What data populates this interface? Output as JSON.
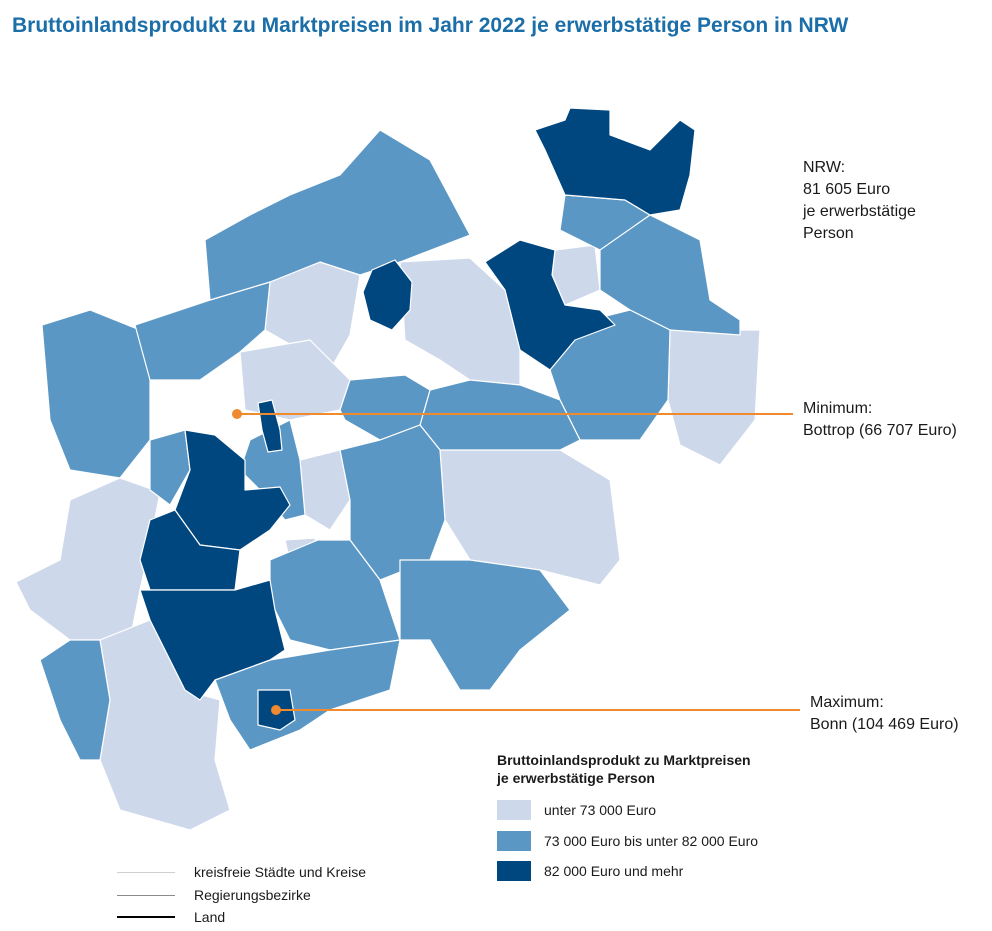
{
  "title": "Bruttoinlandsprodukt zu Marktpreisen im Jahr 2022 je erwerbstätige Person in NRW",
  "annotations": {
    "nrw": [
      "NRW:",
      "81 605 Euro",
      "je erwerbstätige",
      "Person"
    ],
    "minimum": [
      "Minimum:",
      "Bottrop (66 707 Euro)"
    ],
    "maximum": [
      "Maximum:",
      "Bonn (104 469 Euro)"
    ]
  },
  "legend": {
    "title": [
      "Bruttoinlandsprodukt zu Marktpreisen",
      "je erwerbstätige Person"
    ],
    "classes": [
      {
        "label": "unter 73 000 Euro",
        "color": "#cdd8eb"
      },
      {
        "label": "73 000 Euro bis unter 82 000 Euro",
        "color": "#5b97c4"
      },
      {
        "label": "82 000 Euro und mehr",
        "color": "#00467f"
      }
    ]
  },
  "boundary_legend": [
    {
      "label": "kreisfreie Städte und Kreise",
      "color": "#cfcfcf"
    },
    {
      "label": "Regierungsbezirke",
      "color": "#8a8a8a"
    },
    {
      "label": "Land",
      "color": "#000000"
    }
  ],
  "colors": {
    "title": "#1b6ea8",
    "leader_line": "#ef8a2e"
  }
}
